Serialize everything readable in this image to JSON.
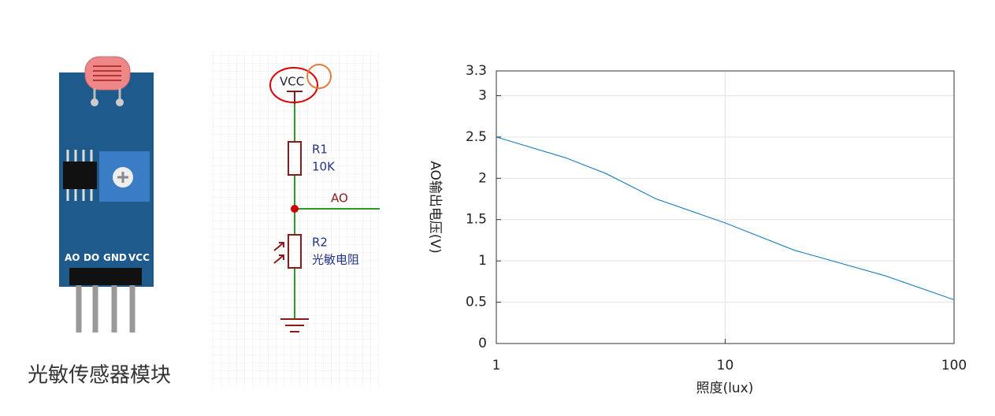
{
  "module": {
    "pins": [
      "AO",
      "DO",
      "GND",
      "VCC"
    ],
    "caption": "光敏传感器模块"
  },
  "schematic": {
    "supply": "VCC",
    "r1_name": "R1",
    "r1_value": "10K",
    "node": "AO",
    "r2_name": "R2",
    "r2_value": "光敏电阻"
  },
  "chart_data": {
    "type": "line",
    "xlabel": "照度(lux)",
    "ylabel": "AO输出电压(V)",
    "x": [
      1,
      2,
      3,
      5,
      10,
      20,
      50,
      100
    ],
    "series": [
      {
        "color": "#0072bd",
        "values": [
          2.5,
          2.25,
          2.06,
          1.75,
          1.46,
          1.13,
          0.82,
          0.53
        ]
      }
    ],
    "xscale": "log",
    "xlim": [
      1,
      100
    ],
    "xticks": [
      1,
      10,
      100
    ],
    "ylim": [
      0,
      3.3
    ],
    "yticks": [
      0,
      0.5,
      1,
      1.5,
      2,
      2.5,
      3,
      3.3
    ],
    "grid": true
  }
}
